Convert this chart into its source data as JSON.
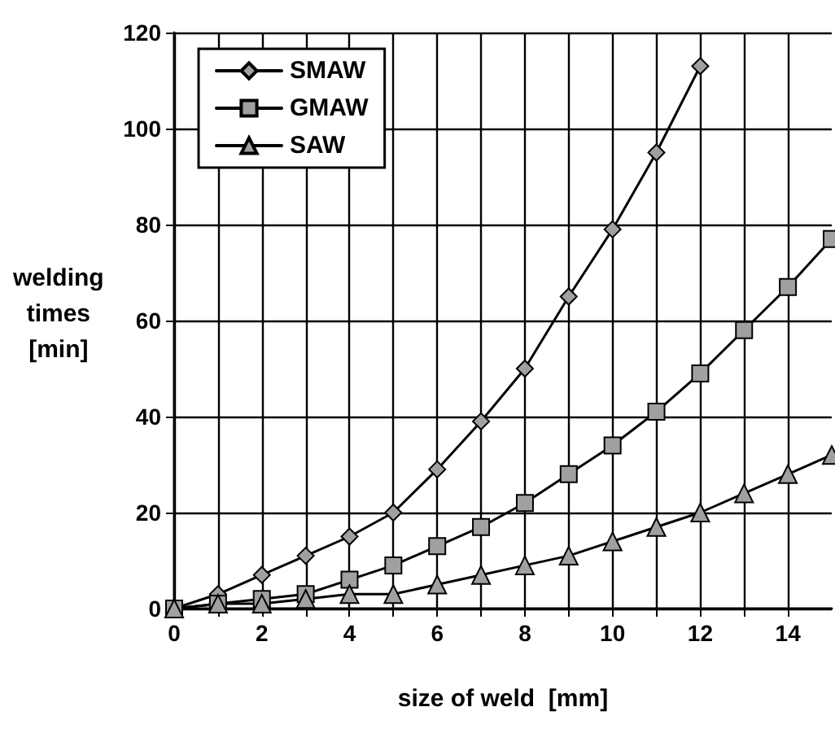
{
  "chart_data": {
    "type": "line",
    "xlabel": "size of weld  [mm]",
    "ylabel": "welding\ntimes\n[min]",
    "x": [
      0,
      1,
      2,
      3,
      4,
      5,
      6,
      7,
      8,
      9,
      10,
      11,
      12,
      13,
      14,
      15
    ],
    "series": [
      {
        "name": "SMAW",
        "color": "#000000",
        "marker": "diamond",
        "x": [
          0,
          1,
          2,
          3,
          4,
          5,
          6,
          7,
          8,
          9,
          10,
          11,
          12
        ],
        "values": [
          0,
          3,
          7,
          11,
          15,
          20,
          29,
          39,
          50,
          65,
          79,
          95,
          113
        ]
      },
      {
        "name": "GMAW",
        "color": "#000000",
        "marker": "square",
        "values": [
          0,
          1,
          2,
          3,
          6,
          9,
          13,
          17,
          22,
          28,
          34,
          41,
          49,
          58,
          67,
          77
        ]
      },
      {
        "name": "SAW",
        "color": "#000000",
        "marker": "triangle",
        "values": [
          0,
          1,
          1,
          2,
          3,
          3,
          5,
          7,
          9,
          11,
          14,
          17,
          20,
          24,
          28,
          32
        ]
      }
    ],
    "xlim": [
      0,
      15
    ],
    "ylim": [
      0,
      120
    ],
    "xticks": [
      0,
      {
        "value": 1,
        "label": null
      },
      2,
      {
        "value": 3,
        "label": null
      },
      4,
      {
        "value": 5,
        "label": null
      },
      6,
      {
        "value": 7,
        "label": null
      },
      8,
      {
        "value": 9,
        "label": null
      },
      10,
      {
        "value": 11,
        "label": null
      },
      12,
      {
        "value": 13,
        "label": null
      },
      14
    ],
    "yticks": [
      0,
      20,
      40,
      60,
      80,
      100,
      120
    ],
    "grid": true,
    "legend": "top left",
    "line_style": "solid"
  }
}
